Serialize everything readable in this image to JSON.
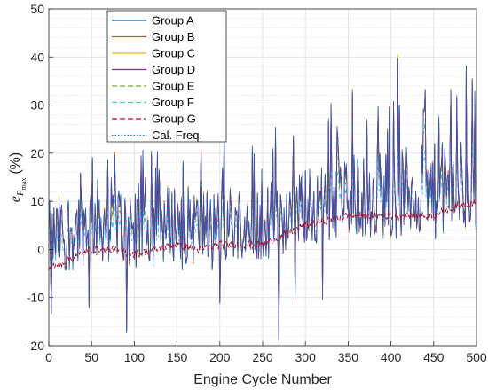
{
  "chart_data": {
    "type": "line",
    "xlabel": "Engine Cycle Number",
    "ylabel": "(%)",
    "ylabel_math": {
      "base": "e",
      "sub": "P",
      "subsub": "max"
    },
    "xlim": [
      0,
      500
    ],
    "ylim": [
      -20,
      50
    ],
    "xticks": [
      0,
      50,
      100,
      150,
      200,
      250,
      300,
      350,
      400,
      450,
      500
    ],
    "yticks": [
      -20,
      -10,
      0,
      10,
      20,
      30,
      40,
      50
    ],
    "grid": true,
    "minor_grid_y": true,
    "legend_position": "top-left",
    "series": [
      {
        "name": "Group A",
        "color": "#0072BD",
        "dash": "solid"
      },
      {
        "name": "Group B",
        "color": "#D95319",
        "dash": "solid"
      },
      {
        "name": "Group C",
        "color": "#EDB120",
        "dash": "solid"
      },
      {
        "name": "Group D",
        "color": "#7E2F8E",
        "dash": "solid"
      },
      {
        "name": "Group E",
        "color": "#77AC30",
        "dash": "dashed"
      },
      {
        "name": "Group F",
        "color": "#4DBEEE",
        "dash": "dashed"
      },
      {
        "name": "Group G",
        "color": "#A2142F",
        "dash": "dashed"
      },
      {
        "name": "Cal. Freq.",
        "color": "#0072BD",
        "dash": "dotted"
      }
    ],
    "trend": {
      "x": [
        0,
        25,
        50,
        75,
        100,
        125,
        150,
        175,
        200,
        225,
        250,
        275,
        300,
        325,
        350,
        375,
        400,
        425,
        450,
        475,
        500
      ],
      "low": [
        -4,
        -2,
        0,
        0,
        -1,
        0,
        1,
        0,
        1,
        1,
        1,
        3,
        5,
        6,
        7,
        7,
        7,
        7,
        7,
        9,
        10
      ],
      "mid": [
        2,
        4,
        6,
        6,
        5,
        5,
        6,
        5,
        5,
        6,
        6,
        7,
        9,
        10,
        11,
        11,
        12,
        12,
        12,
        13,
        14
      ],
      "high": [
        10,
        13,
        15,
        16,
        15,
        15,
        16,
        15,
        15,
        16,
        16,
        17,
        19,
        21,
        23,
        23,
        25,
        24,
        25,
        27,
        28
      ]
    },
    "spikes": [
      {
        "x": 3,
        "y": -13
      },
      {
        "x": 47,
        "y": -12
      },
      {
        "x": 91,
        "y": -17
      },
      {
        "x": 200,
        "y": -11
      },
      {
        "x": 269,
        "y": -19
      },
      {
        "x": 288,
        "y": -10
      },
      {
        "x": 320,
        "y": -10
      },
      {
        "x": 120,
        "y": 20
      },
      {
        "x": 205,
        "y": 25
      },
      {
        "x": 265,
        "y": 25
      },
      {
        "x": 330,
        "y": 30
      },
      {
        "x": 355,
        "y": 33
      },
      {
        "x": 408,
        "y": 40
      },
      {
        "x": 440,
        "y": 33
      },
      {
        "x": 470,
        "y": 33
      },
      {
        "x": 488,
        "y": 38
      },
      {
        "x": 495,
        "y": 35
      }
    ]
  }
}
